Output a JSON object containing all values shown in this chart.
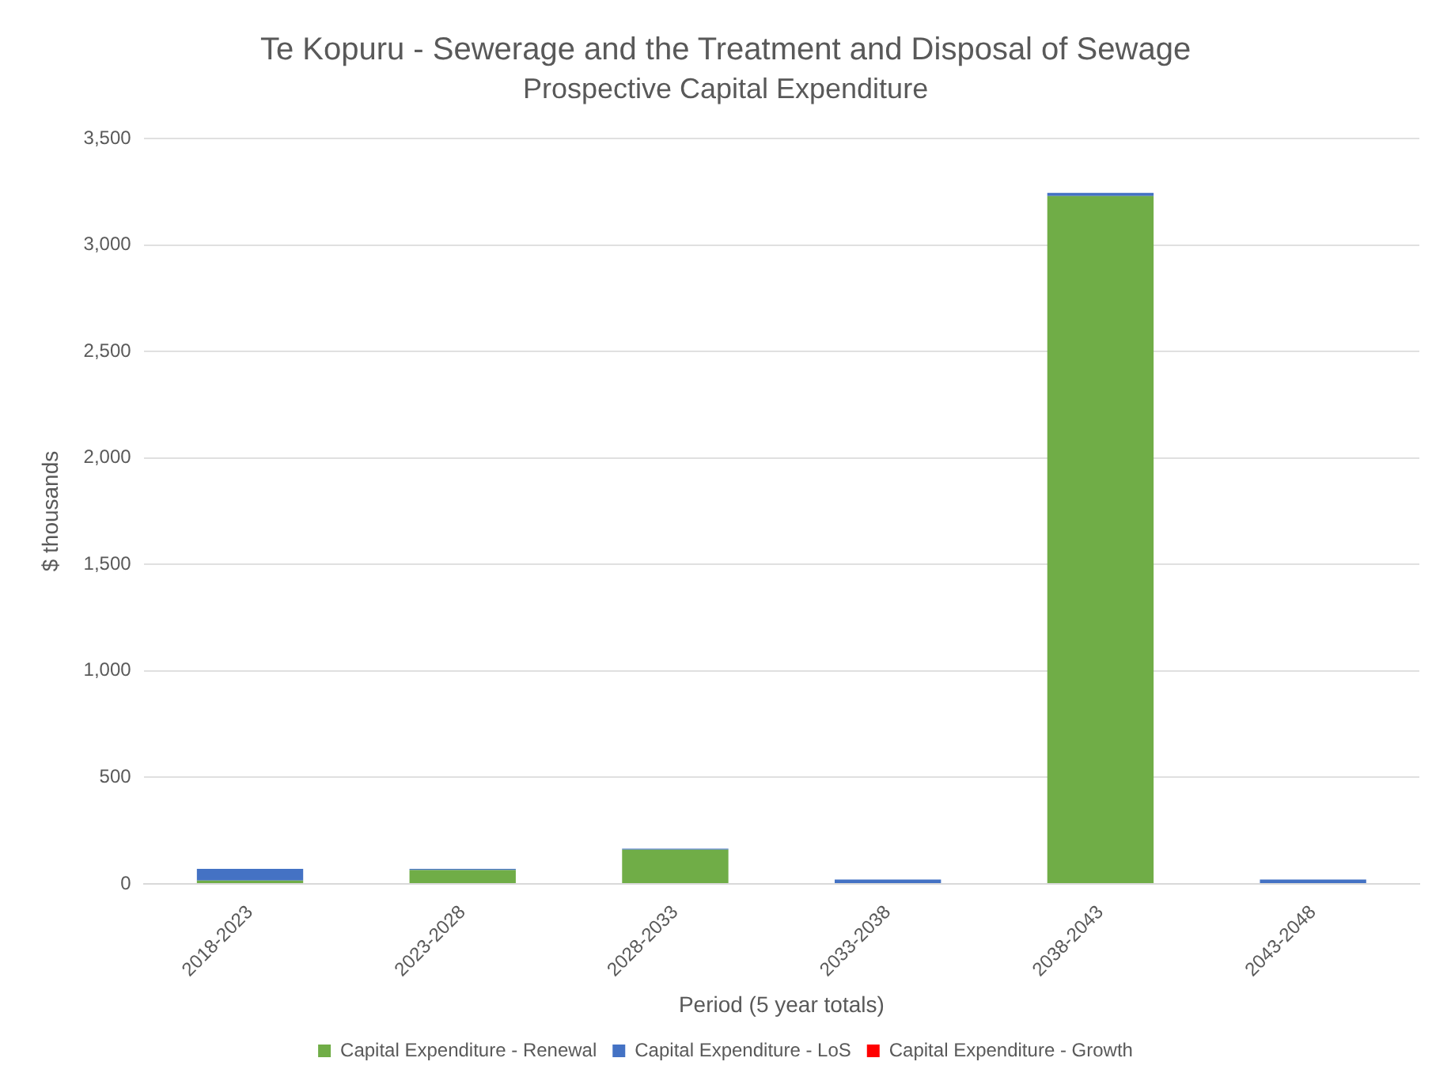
{
  "chart_data": {
    "type": "bar",
    "title": "Te Kopuru - Sewerage and the Treatment and Disposal of Sewage",
    "subtitle": "Prospective Capital Expenditure",
    "xlabel": "Period (5 year totals)",
    "ylabel": "$ thousands",
    "categories": [
      "2018-2023",
      "2023-2028",
      "2028-2033",
      "2033-2038",
      "2038-2043",
      "2043-2048"
    ],
    "stacked": true,
    "series": [
      {
        "name": "Capital Expenditure - Renewal",
        "color": "#70ad47",
        "values": [
          15,
          65,
          160,
          0,
          3230,
          0
        ]
      },
      {
        "name": "Capital Expenditure - LoS",
        "color": "#4472c4",
        "values": [
          55,
          5,
          5,
          20,
          15,
          20
        ]
      },
      {
        "name": "Capital Expenditure - Growth",
        "color": "#ff0000",
        "values": [
          0,
          0,
          0,
          0,
          0,
          0
        ]
      }
    ],
    "ylim": [
      0,
      3500
    ],
    "yticks": [
      {
        "value": 0,
        "label": "0"
      },
      {
        "value": 500,
        "label": "500"
      },
      {
        "value": 1000,
        "label": "1,000"
      },
      {
        "value": 1500,
        "label": "1,500"
      },
      {
        "value": 2000,
        "label": "2,000"
      },
      {
        "value": 2500,
        "label": "2,500"
      },
      {
        "value": 3000,
        "label": "3,000"
      },
      {
        "value": 3500,
        "label": "3,500"
      }
    ],
    "grid": "y",
    "legend": "bottom"
  }
}
